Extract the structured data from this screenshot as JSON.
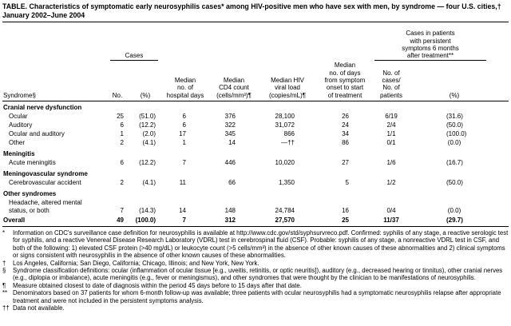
{
  "title": "TABLE. Characteristics of symptomatic early neurosyphilis cases* among HIV-positive men who have sex with men, by syndrome — four U.S. cities,† January 2002–June 2004",
  "table": {
    "headers": {
      "syndrome": "Syndrome§",
      "cases_group": "Cases",
      "cases_no": "No.",
      "cases_pct": "(%)",
      "hospital_days": "Median\nno. of\nhospital days",
      "cd4": "Median\nCD4 count\n(cells/mm³)¶",
      "viral_load": "Median HIV\nviral load\n(copies/mL)¶",
      "days_to_treatment": "Median\nno. of days\nfrom symptom\nonset to start\nof treatment",
      "persistent_group": "Cases in patients\nwith persistent\nsymptoms 6 months\nafter treatment**",
      "persistent_no": "No. of cases/\nNo. of patients",
      "persistent_pct": "(%)"
    },
    "rows": [
      {
        "style": "section",
        "label": "Cranial nerve dysfunction",
        "cells": null
      },
      {
        "style": "indent",
        "label": "Ocular",
        "cells": [
          "25",
          "(51.0)",
          "6",
          "376",
          "28,100",
          "26",
          "6/19",
          "(31.6)"
        ]
      },
      {
        "style": "indent",
        "label": "Auditory",
        "cells": [
          "6",
          "(12.2)",
          "6",
          "322",
          "31,072",
          "24",
          "2/4",
          "(50.0)"
        ]
      },
      {
        "style": "indent",
        "label": "Ocular and auditory",
        "cells": [
          "1",
          "(2.0)",
          "17",
          "345",
          "866",
          "34",
          "1/1",
          "(100.0)"
        ]
      },
      {
        "style": "indent",
        "label": "Other",
        "cells": [
          "2",
          "(4.1)",
          "1",
          "14",
          "—††",
          "86",
          "0/1",
          "(0.0)"
        ]
      },
      {
        "style": "section",
        "label": "Meningitis",
        "cells": null
      },
      {
        "style": "indent",
        "label": "Acute meningitis",
        "cells": [
          "6",
          "(12.2)",
          "7",
          "446",
          "10,020",
          "27",
          "1/6",
          "(16.7)"
        ]
      },
      {
        "style": "section",
        "label": "Meningovascular syndrome",
        "cells": null
      },
      {
        "style": "indent",
        "label": "Cerebrovascular accident",
        "cells": [
          "2",
          "(4.1)",
          "11",
          "66",
          "1,350",
          "5",
          "1/2",
          "(50.0)"
        ]
      },
      {
        "style": "section",
        "label": "Other syndromes",
        "cells": null
      },
      {
        "style": "indent",
        "label": "Headache, altered mental\nstatus, or both",
        "cells": [
          "7",
          "(14.3)",
          "14",
          "148",
          "24,784",
          "16",
          "0/4",
          "(0.0)"
        ]
      },
      {
        "style": "overall",
        "label": "Overall",
        "cells": [
          "49",
          "(100.0)",
          "7",
          "312",
          "27,570",
          "25",
          "11/37",
          "(29.7)"
        ]
      }
    ]
  },
  "footnotes": [
    {
      "marker": "*",
      "text": "Information on CDC's surveillance case definition for neurosyphilis is available at http://www.cdc.gov/std/syphsurvreco.pdf. Confirmed: syphilis of any stage, a reactive serologic test for syphilis, and a reactive Venereal Disease Research Laboratory (VDRL) test in cerebrospinal fluid (CSF). Probable: syphilis of any stage, a nonreactive VDRL test in CSF, and both of the following: 1) elevated CSF protein (>40 mg/dL) or leukocyte count (>5 cells/mm³) in the absence of other known causes of these abnormalities and 2) clinical symptoms or signs consistent with neurosyphilis in the absence of other known causes of these abnormalities."
    },
    {
      "marker": "†",
      "text": "Los Angeles, California; San Diego, California; Chicago, Illinois; and New York, New York."
    },
    {
      "marker": "§",
      "text": "Syndrome classification definitions: ocular (inflammation of ocular tissue [e.g., uveitis, retinitis, or optic neuritis]), auditory (e.g., decreased hearing or tinnitus), other cranial nerves (e.g., diplopia or imbalance), acute meningitis (e.g., fever or meningismus), and other syndromes that were thought by the clinician to be manifestations of neurosyphilis."
    },
    {
      "marker": "¶",
      "text": "Measure obtained closest to date of diagnosis within the period 45 days before to 15 days after that date."
    },
    {
      "marker": "**",
      "text": "Denominators based on 37 patients for whom 6-month follow-up was available; three patients with ocular neurosyphilis had a symptomatic neurosyphilis relapse after appropriate treatment and were not included in the persistent symptoms analysis."
    },
    {
      "marker": "††",
      "text": "Data not available."
    }
  ]
}
